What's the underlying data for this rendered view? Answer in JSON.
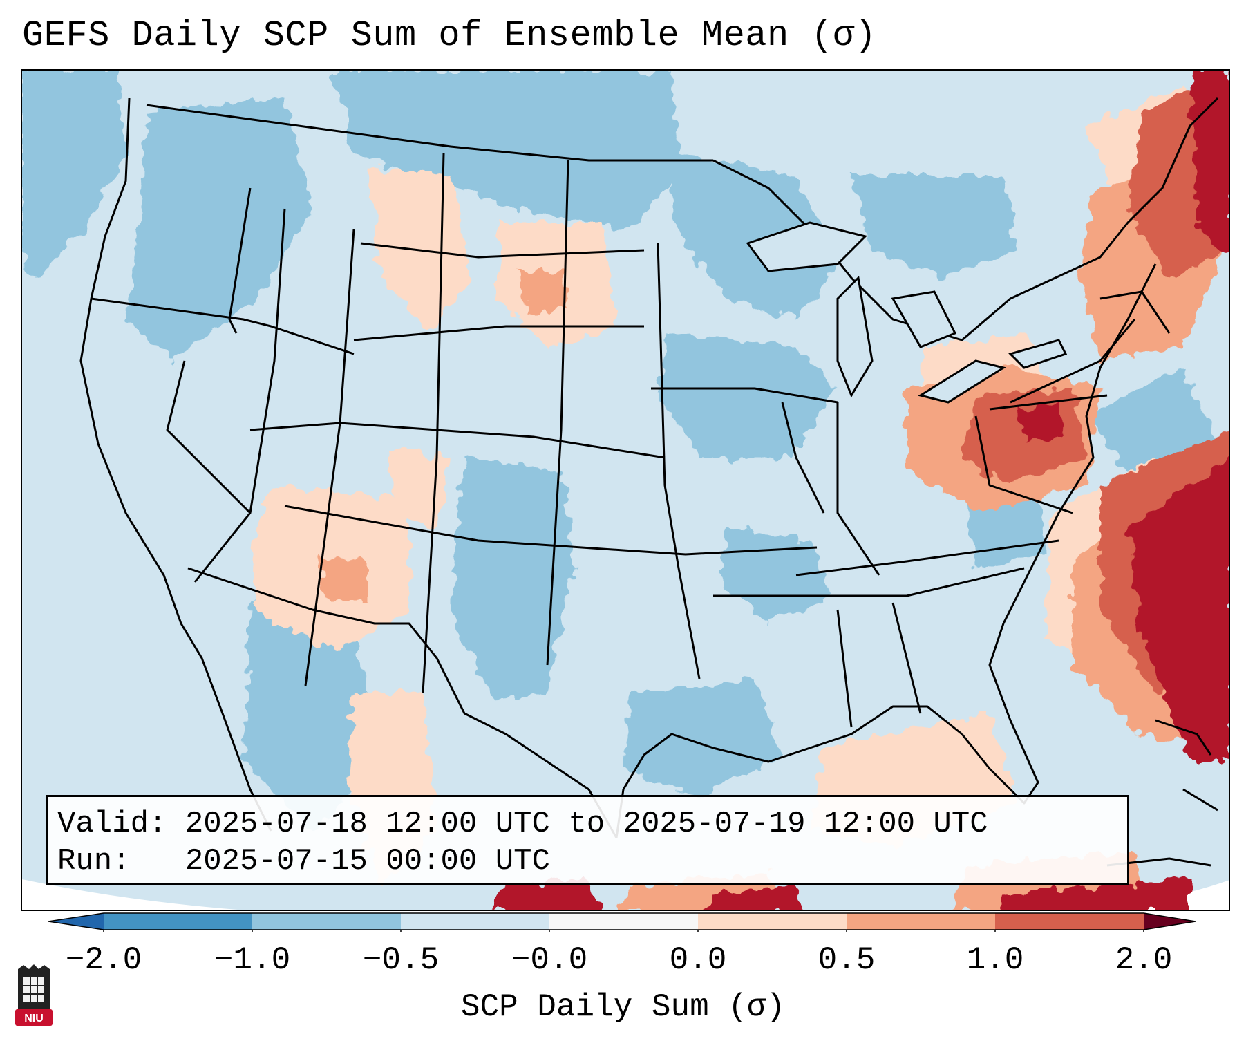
{
  "title": "GEFS Daily SCP Sum of Ensemble Mean (σ)",
  "info": {
    "valid_label": "Valid:",
    "valid_value": "2025-07-18 12:00 UTC to 2025-07-19 12:00 UTC",
    "run_label": "Run:",
    "run_value": "2025-07-15 00:00 UTC"
  },
  "colorbar": {
    "label": "SCP Daily Sum (σ)",
    "ticks": [
      "−2.0",
      "−1.0",
      "−0.5",
      "−0.0",
      "0.0",
      "0.5",
      "1.0",
      "2.0"
    ],
    "colors": [
      "#4393c3",
      "#92c5de",
      "#d1e5f0",
      "#f7f7f7",
      "#fddbc7",
      "#f4a582",
      "#d6604d",
      "#b2182b"
    ],
    "under_color": "#2166ac",
    "over_color": "#67001f"
  },
  "map": {
    "background_color": "#d2e5f0",
    "ocean_color": "#ffffff",
    "border_color": "#000000",
    "regions": [
      {
        "name": "northeast-high",
        "level": "high"
      },
      {
        "name": "atlantic-high",
        "level": "high"
      },
      {
        "name": "mid-atlantic-moderate",
        "level": "moderate"
      },
      {
        "name": "high-plains-low",
        "level": "low"
      },
      {
        "name": "southwest-low",
        "level": "low"
      },
      {
        "name": "gulf-coast-negative",
        "level": "negative"
      },
      {
        "name": "upper-midwest-negative",
        "level": "negative"
      }
    ]
  },
  "logo": {
    "text": "NIU",
    "color": "#c8102e"
  }
}
